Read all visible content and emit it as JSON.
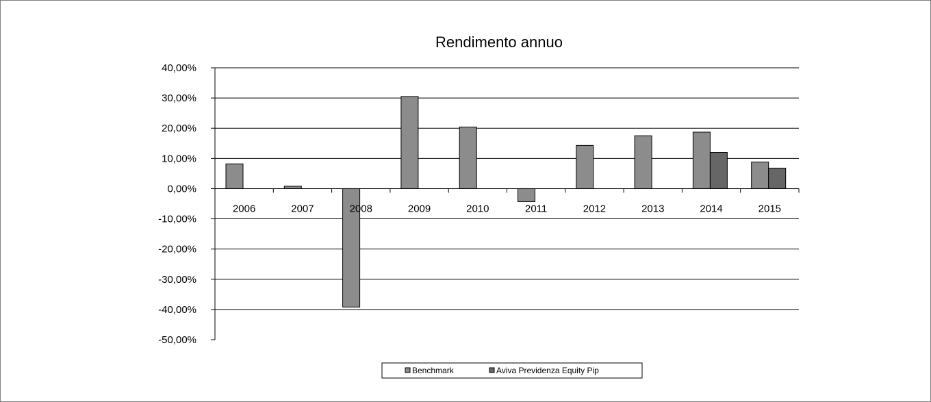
{
  "chart_data": {
    "type": "bar",
    "title": "Rendimento annuo",
    "categories": [
      "2006",
      "2007",
      "2008",
      "2009",
      "2010",
      "2011",
      "2012",
      "2013",
      "2014",
      "2015"
    ],
    "series": [
      {
        "name": "Benchmark",
        "color": "#8c8c8c",
        "values": [
          8.2,
          0.8,
          -39.2,
          30.5,
          20.4,
          -4.3,
          14.3,
          17.5,
          18.7,
          8.8
        ]
      },
      {
        "name": "Aviva Previdenza Equity Pip",
        "color": "#666666",
        "values": [
          null,
          null,
          null,
          null,
          null,
          null,
          null,
          null,
          12.0,
          6.8
        ]
      }
    ],
    "ylim": [
      -50,
      40
    ],
    "ytick_values": [
      40,
      30,
      20,
      10,
      0,
      -10,
      -20,
      -30,
      -40,
      -50
    ],
    "ytick_labels": [
      "40,00%",
      "30,00%",
      "20,00%",
      "10,00%",
      "0,00%",
      "-10,00%",
      "-20,00%",
      "-30,00%",
      "-40,00%",
      "-50,00%"
    ],
    "xlabel": "",
    "ylabel": "",
    "grid": true,
    "legend_position": "bottom-center"
  }
}
